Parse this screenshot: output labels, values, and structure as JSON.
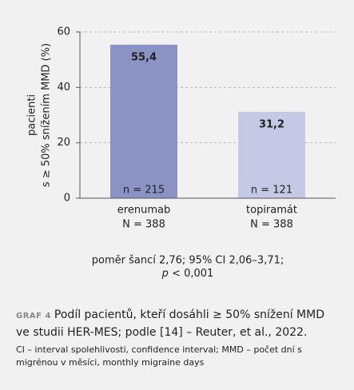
{
  "chart_data": {
    "type": "bar",
    "y_label": [
      "pacienti",
      "s ≥ 50% snížením MMD (%)"
    ],
    "categories": [
      "erenumab",
      "topiramát"
    ],
    "category_sublabels": [
      "N = 388",
      "N = 388"
    ],
    "sample_labels": [
      "n = 215",
      "n = 121"
    ],
    "values": [
      55.4,
      31.2
    ],
    "value_labels": [
      "55,4",
      "31,2"
    ],
    "colors": [
      "#8a93c4",
      "#c6c9e6"
    ],
    "ylim": [
      0,
      60
    ],
    "yticks": [
      0,
      20,
      40,
      60
    ],
    "grid": true,
    "note": [
      "poměr šancí 2,76; 95% CI 2,06–3,71;",
      "p",
      "< 0,001"
    ]
  },
  "caption": {
    "label": "GRAF 4",
    "text": "Podíl pacientů, kteří dosáhli ≥ 50% snížení MMD ve studii HER-MES; podle [14] – Reuter, et al., 2022.",
    "footnote": "CI – interval spolehlivosti, confidence interval; MMD – počet dní s migrénou v měsíci, monthly migraine days"
  }
}
